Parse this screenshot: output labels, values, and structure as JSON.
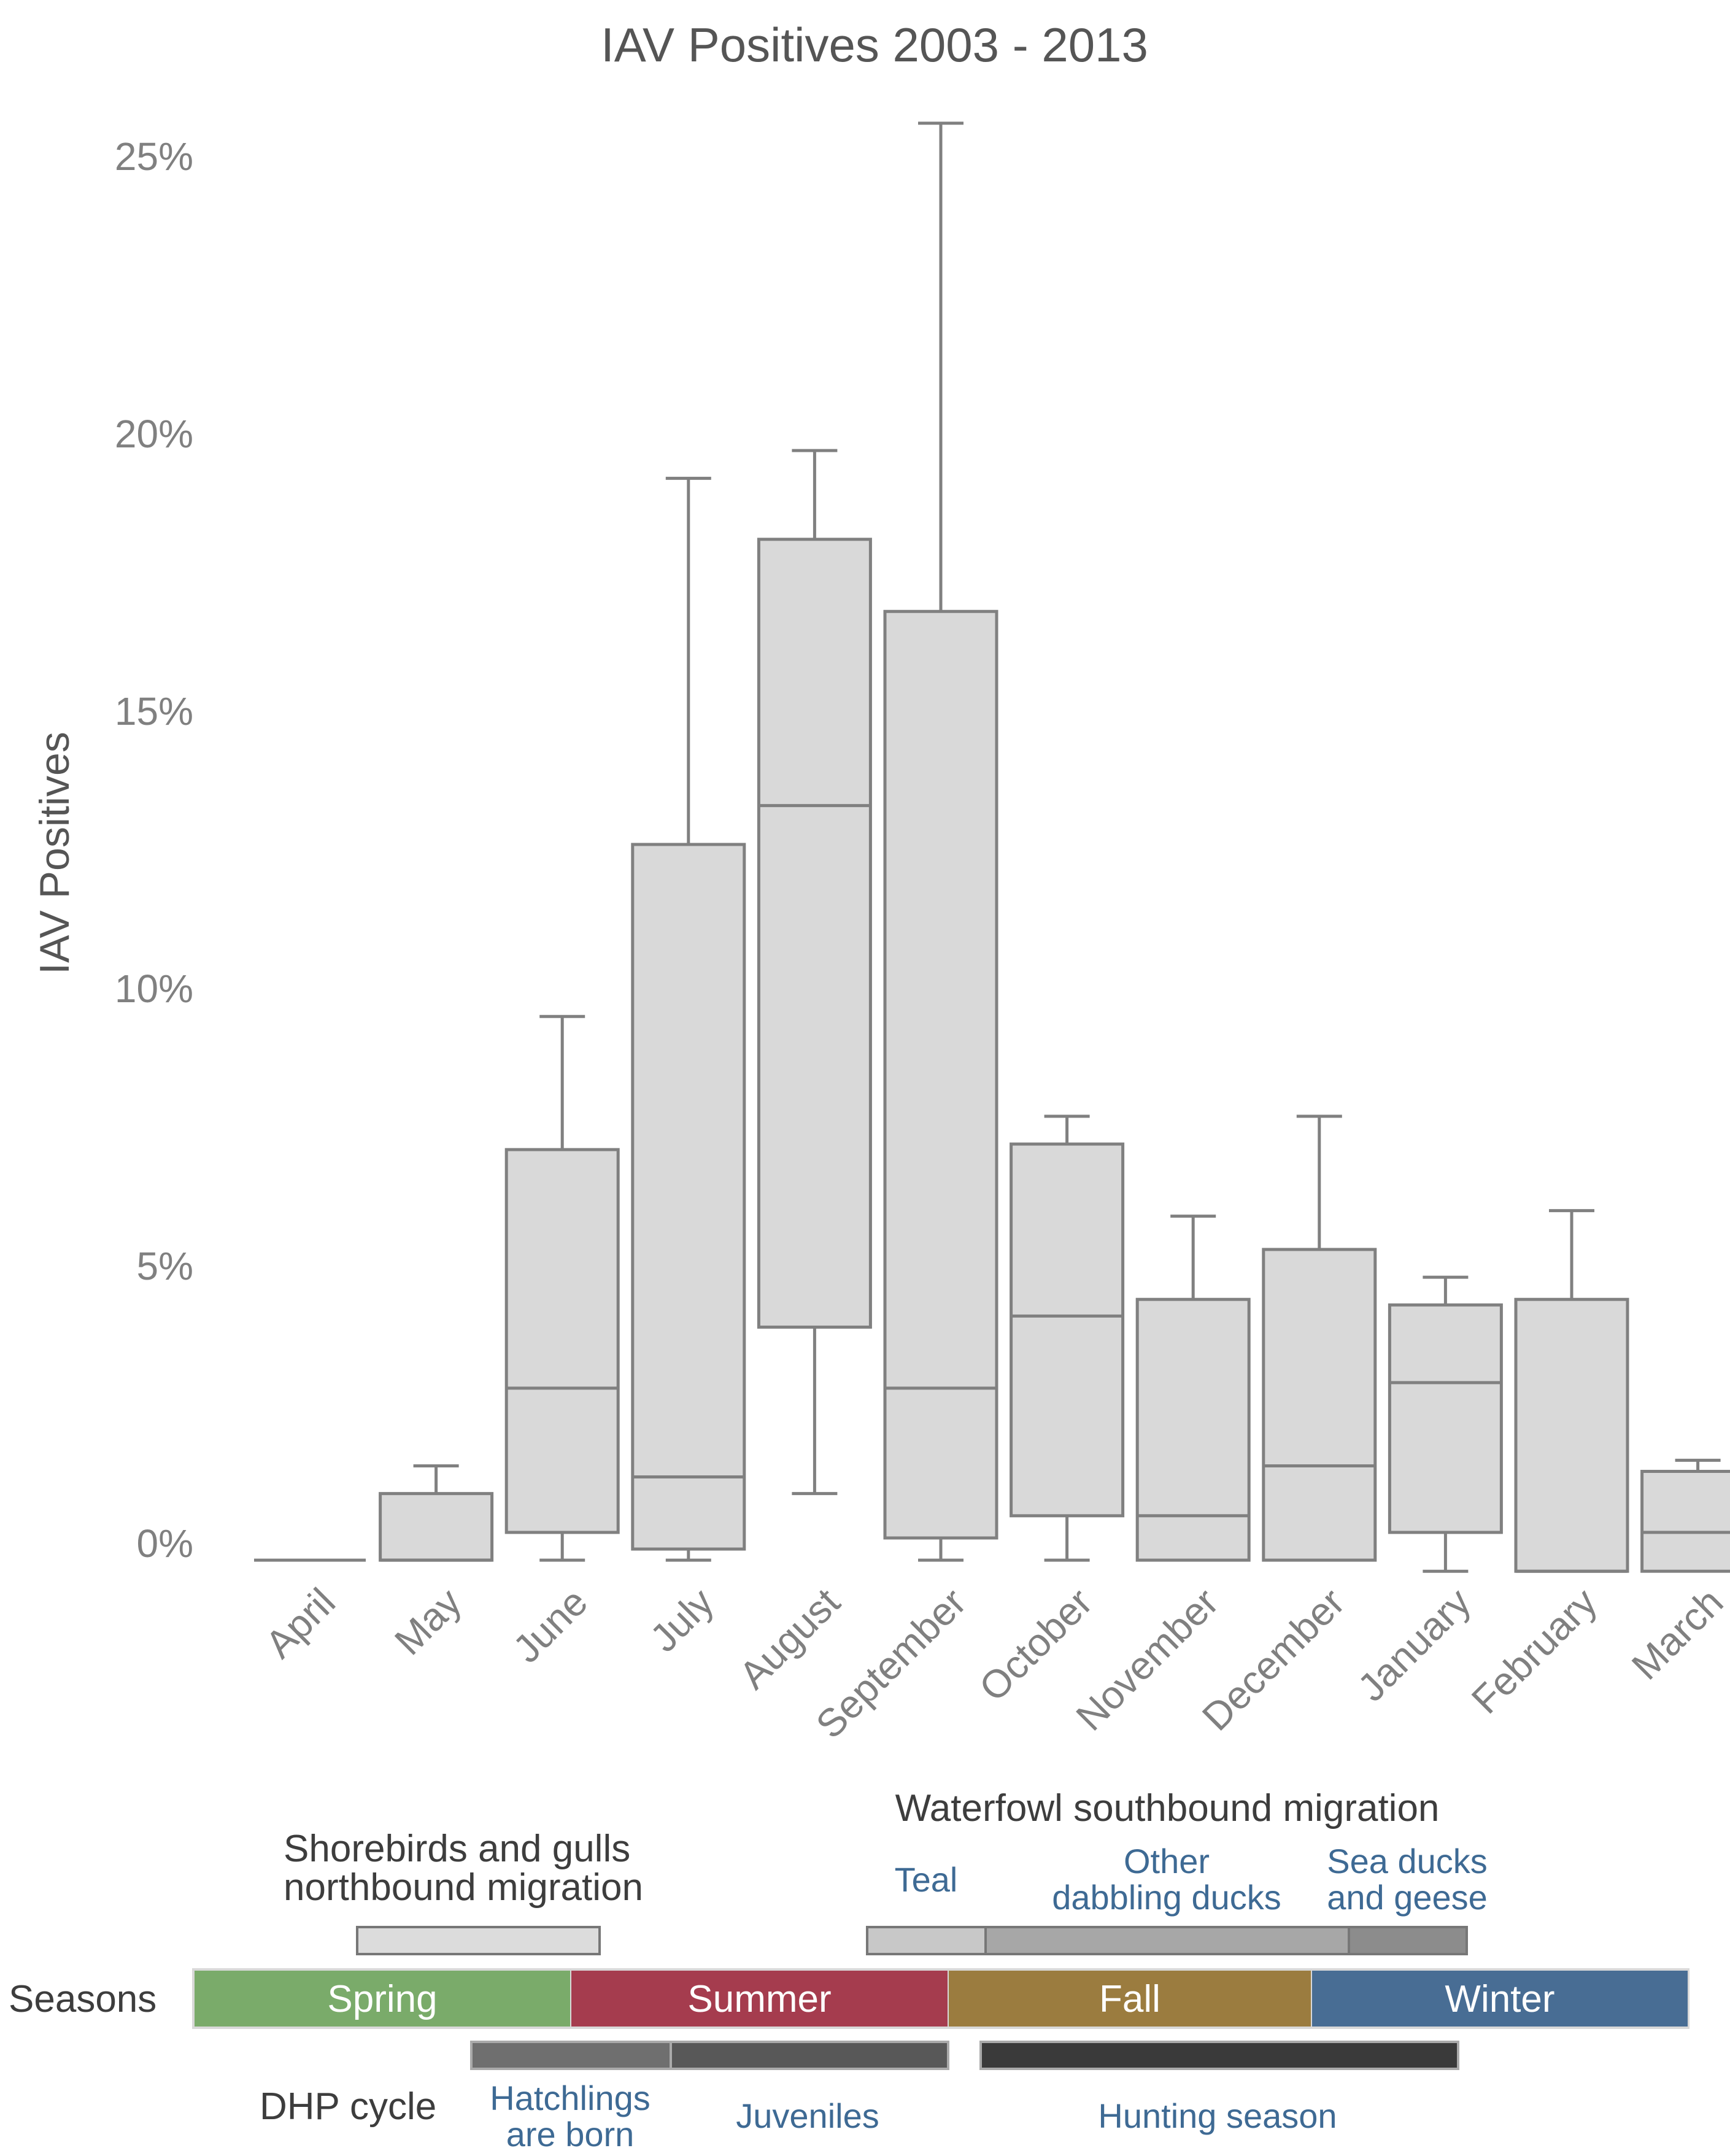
{
  "chart_data": {
    "type": "box",
    "title": "IAV Positives 2003 - 2013",
    "ylabel": "IAV Positives",
    "xlabel": "",
    "ylim": [
      -0.7,
      26
    ],
    "y_ticks": [
      0,
      5,
      10,
      15,
      20,
      25
    ],
    "y_tick_labels": [
      "0%",
      "5%",
      "10%",
      "15%",
      "20%",
      "25%"
    ],
    "grid": false,
    "box_color": "#d9d9d9",
    "line_color": "#808080",
    "categories": [
      "April",
      "May",
      "June",
      "July",
      "August",
      "September",
      "October",
      "November",
      "December",
      "January",
      "February",
      "March"
    ],
    "boxes": [
      {
        "min": -0.3,
        "q1": -0.3,
        "median": -0.3,
        "q3": -0.3,
        "max": -0.3
      },
      {
        "min": -0.3,
        "q1": -0.3,
        "median": -0.3,
        "q3": 0.9,
        "max": 1.4
      },
      {
        "min": -0.3,
        "q1": 0.2,
        "median": 2.8,
        "q3": 7.1,
        "max": 9.5
      },
      {
        "min": -0.3,
        "q1": -0.1,
        "median": 1.2,
        "q3": 12.6,
        "max": 19.2
      },
      {
        "min": 0.9,
        "q1": 3.9,
        "median": 13.3,
        "q3": 18.1,
        "max": 19.7
      },
      {
        "min": -0.3,
        "q1": 0.1,
        "median": 2.8,
        "q3": 16.8,
        "max": 25.6
      },
      {
        "min": -0.3,
        "q1": 0.5,
        "median": 4.1,
        "q3": 7.2,
        "max": 7.7
      },
      {
        "min": -0.3,
        "q1": -0.3,
        "median": 0.5,
        "q3": 4.4,
        "max": 5.9
      },
      {
        "min": -0.3,
        "q1": -0.3,
        "median": 1.4,
        "q3": 5.3,
        "max": 7.7
      },
      {
        "min": -0.5,
        "q1": 0.2,
        "median": 2.9,
        "q3": 4.3,
        "max": 4.8
      },
      {
        "min": -0.5,
        "q1": -0.5,
        "median": -0.5,
        "q3": 4.4,
        "max": 6.0
      },
      {
        "min": -0.5,
        "q1": -0.5,
        "median": 0.2,
        "q3": 1.3,
        "max": 1.5
      }
    ]
  },
  "timeline": {
    "seasons_label": "Seasons",
    "dhp_label": "DHP cycle",
    "waterfowl_title": "Waterfowl southbound migration",
    "shorebirds_line1": "Shorebirds and gulls",
    "shorebirds_line2": "northbound migration",
    "teal": "Teal",
    "other_line1": "Other",
    "other_line2": "dabbling ducks",
    "sea_line1": "Sea ducks",
    "sea_line2": "and geese",
    "hatch_line1": "Hatchlings",
    "hatch_line2": "are born",
    "juveniles": "Juveniles",
    "hunting": "Hunting season",
    "seasons": [
      {
        "label": "Spring",
        "color": "#7aab6a"
      },
      {
        "label": "Summer",
        "color": "#a53c4e"
      },
      {
        "label": "Fall",
        "color": "#9b7c3f"
      },
      {
        "label": "Winter",
        "color": "#486d94"
      }
    ],
    "bar_colors": {
      "shorebirds": "#dcdcdc",
      "teal": "#c8c8c8",
      "other_dabbling": "#a7a7a7",
      "sea_ducks": "#8c8c8c",
      "hatchlings": "#6f6f6f",
      "juveniles": "#585858",
      "hunting": "#3a3a3a"
    }
  }
}
